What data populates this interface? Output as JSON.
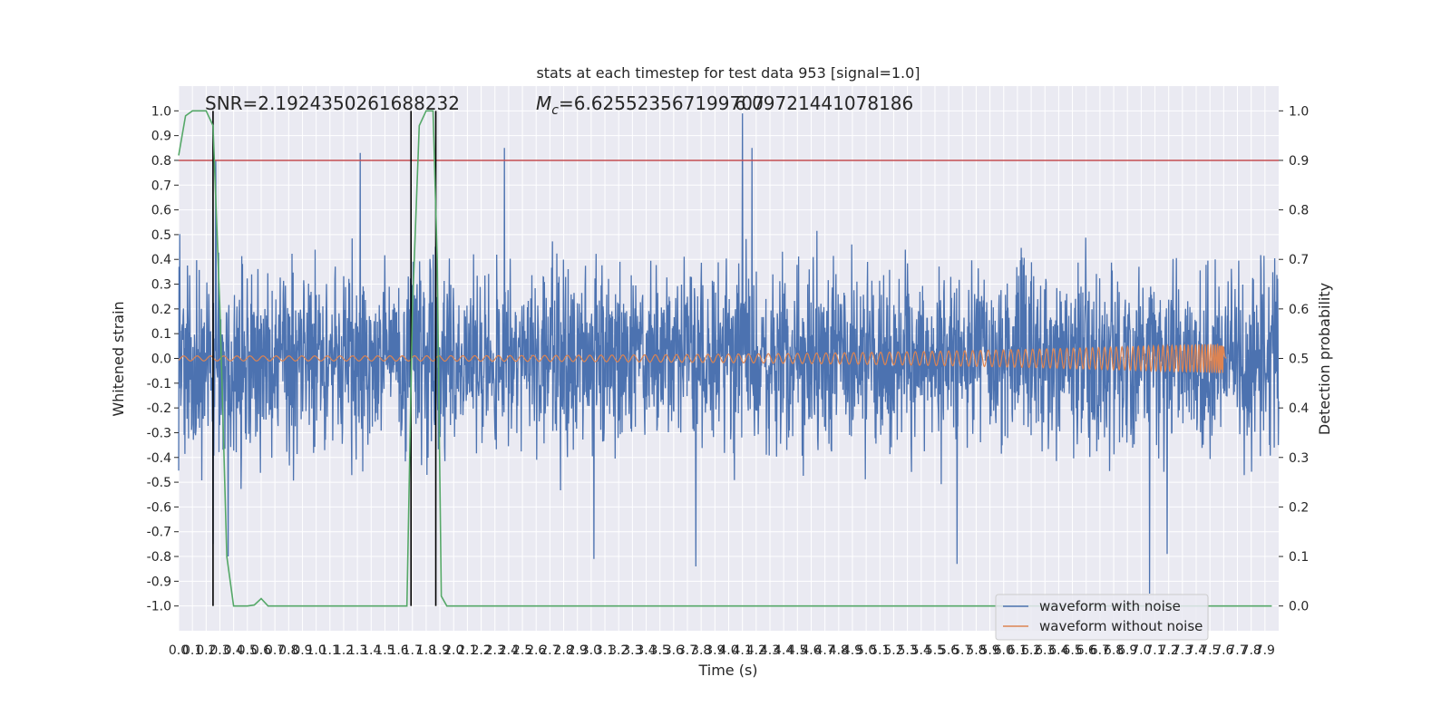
{
  "chart_data": {
    "type": "line",
    "title": "stats at each timestep for test data 953 [signal=1.0]",
    "xlabel": "Time (s)",
    "ylabel": "Whitened strain",
    "y2label": "Detection probability",
    "xlim": [
      0.0,
      8.0
    ],
    "ylim": [
      -1.1,
      1.1
    ],
    "y2lim": [
      -0.05,
      1.05
    ],
    "grid": true,
    "legend_position": "lower-right",
    "x_tick_labels": [
      "0.0",
      "0.1",
      "0.2",
      "0.3",
      "0.4",
      "0.5",
      "0.6",
      "0.7",
      "0.8",
      "0.9",
      "1.0",
      "1.1",
      "1.2",
      "1.3",
      "1.4",
      "1.5",
      "1.6",
      "1.7",
      "1.8",
      "1.9",
      "2.0",
      "2.1",
      "2.2",
      "2.3",
      "2.4",
      "2.5",
      "2.6",
      "2.7",
      "2.8",
      "2.9",
      "3.0",
      "3.1",
      "3.2",
      "3.3",
      "3.4",
      "3.5",
      "3.6",
      "3.7",
      "3.8",
      "3.9",
      "4.0",
      "4.1",
      "4.2",
      "4.3",
      "4.4",
      "4.5",
      "4.6",
      "4.7",
      "4.8",
      "4.9",
      "5.0",
      "5.1",
      "5.2",
      "5.3",
      "5.4",
      "5.5",
      "5.6",
      "5.7",
      "5.8",
      "5.9",
      "6.0",
      "6.1",
      "6.2",
      "6.3",
      "6.4",
      "6.5",
      "6.6",
      "6.7",
      "6.8",
      "6.9",
      "7.0",
      "7.1",
      "7.2",
      "7.3",
      "7.4",
      "7.5",
      "7.6",
      "7.7",
      "7.8",
      "7.9"
    ],
    "y_tick_labels": [
      "-1.0",
      "-0.9",
      "-0.8",
      "-0.7",
      "-0.6",
      "-0.5",
      "-0.4",
      "-0.3",
      "-0.2",
      "-0.1",
      "0.0",
      "0.1",
      "0.2",
      "0.3",
      "0.4",
      "0.5",
      "0.6",
      "0.7",
      "0.8",
      "0.9",
      "1.0"
    ],
    "y2_tick_labels": [
      "0.0",
      "0.1",
      "0.2",
      "0.3",
      "0.4",
      "0.5",
      "0.6",
      "0.7",
      "0.8",
      "0.9",
      "1.0"
    ],
    "annotations": {
      "snr": "SNR=2.1924350261688232",
      "mc_symbol": "M",
      "mc_sub": "c",
      "mc_value": "=6.625523567199707",
      "overlap_text": "6.09721441078186"
    },
    "threshold": {
      "value": 0.9,
      "axis": "y2",
      "color": "#c44e52"
    },
    "vertical_markers_x": [
      0.25,
      1.69,
      1.87
    ],
    "series": [
      {
        "name": "waveform with noise",
        "axis": "y",
        "color": "#4c72b0",
        "envelope_typical": 0.48,
        "peaks": [
          [
            0.25,
            -0.75
          ],
          [
            0.27,
            0.8
          ],
          [
            1.32,
            0.83
          ],
          [
            2.37,
            0.85
          ],
          [
            4.1,
            0.99
          ],
          [
            4.17,
            0.85
          ],
          [
            3.76,
            -0.84
          ],
          [
            3.02,
            -0.81
          ],
          [
            5.66,
            -0.83
          ],
          [
            7.06,
            -0.95
          ],
          [
            7.19,
            -0.79
          ],
          [
            0.36,
            -0.8
          ]
        ]
      },
      {
        "name": "waveform without noise",
        "axis": "y",
        "color": "#dd8452",
        "amplitude_start": 0.01,
        "amplitude_end": 0.06,
        "merger_x": 7.6,
        "end_x": 7.62
      },
      {
        "name": "Detection probability",
        "axis": "y2",
        "color": "#55a868",
        "x": [
          0.0,
          0.05,
          0.1,
          0.15,
          0.2,
          0.25,
          0.3,
          0.35,
          0.4,
          0.45,
          0.5,
          0.55,
          0.6,
          0.65,
          1.6,
          1.66,
          1.7,
          1.75,
          1.8,
          1.85,
          1.88,
          1.91,
          1.95,
          2.0,
          7.95
        ],
        "values": [
          0.91,
          0.99,
          1.0,
          1.0,
          1.0,
          0.97,
          0.6,
          0.1,
          0.0,
          0.0,
          0.0,
          0.002,
          0.015,
          0.0,
          0.0,
          0.0,
          0.6,
          0.97,
          1.0,
          1.0,
          0.7,
          0.02,
          0.0,
          0.0,
          0.0
        ]
      }
    ],
    "legend": [
      {
        "label": "waveform with noise",
        "color": "#4c72b0"
      },
      {
        "label": "waveform without noise",
        "color": "#dd8452"
      }
    ]
  }
}
